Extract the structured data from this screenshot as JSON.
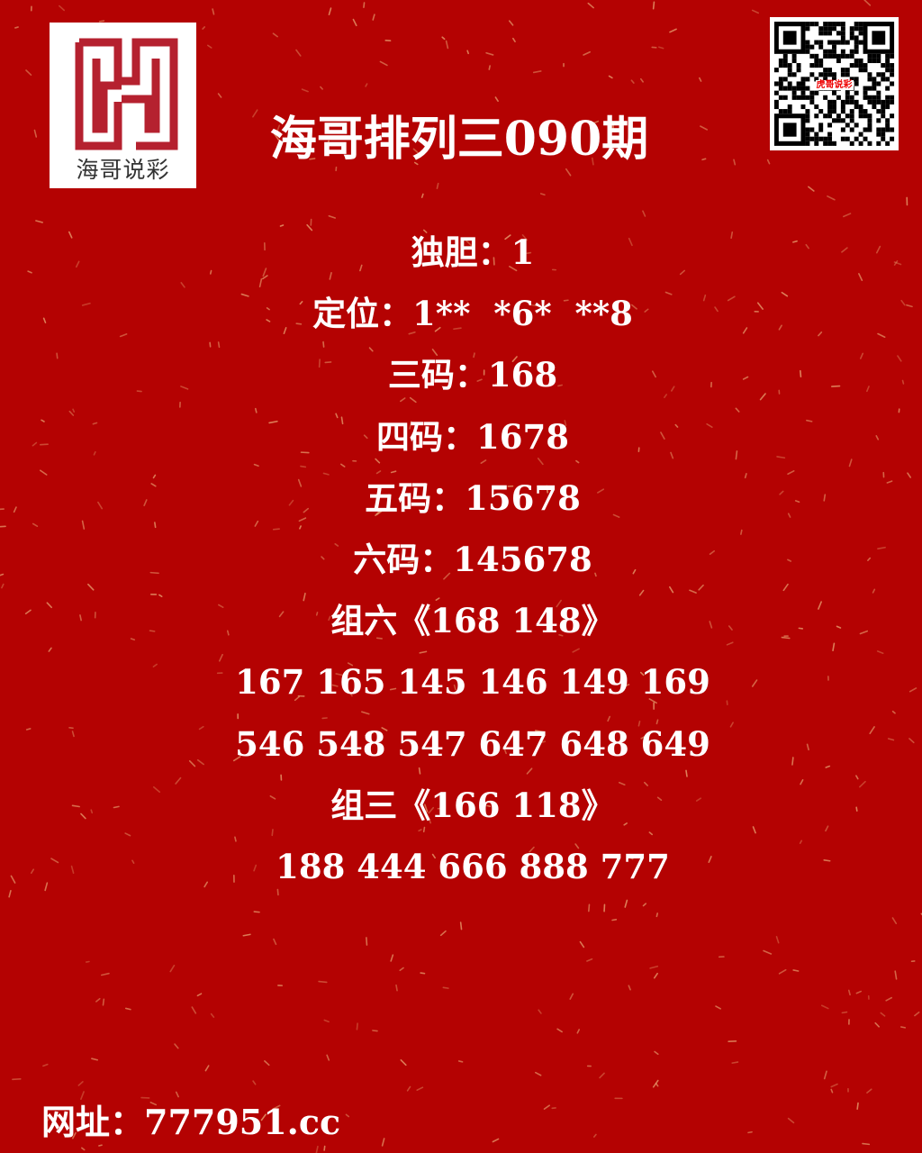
{
  "colors": {
    "background": "#b40202",
    "text": "#ffffff",
    "logo_red": "#b5212f",
    "confetti": "#e8a070"
  },
  "logo": {
    "text": "海哥说彩",
    "monogram": "HY"
  },
  "title": "海哥排列三090期",
  "qr": {
    "label": "虎哥说彩"
  },
  "lines": [
    "独胆：1",
    "定位：1**  *6*  **8",
    "三码：168",
    "四码：1678",
    "五码：15678",
    "六码：145678",
    "组六《168 148》",
    "167 165 145 146 149 169",
    "546 548 547 647 648 649",
    "组三《166 118》",
    "188 444 666 888 777"
  ],
  "footer": "网址：777951.cc"
}
